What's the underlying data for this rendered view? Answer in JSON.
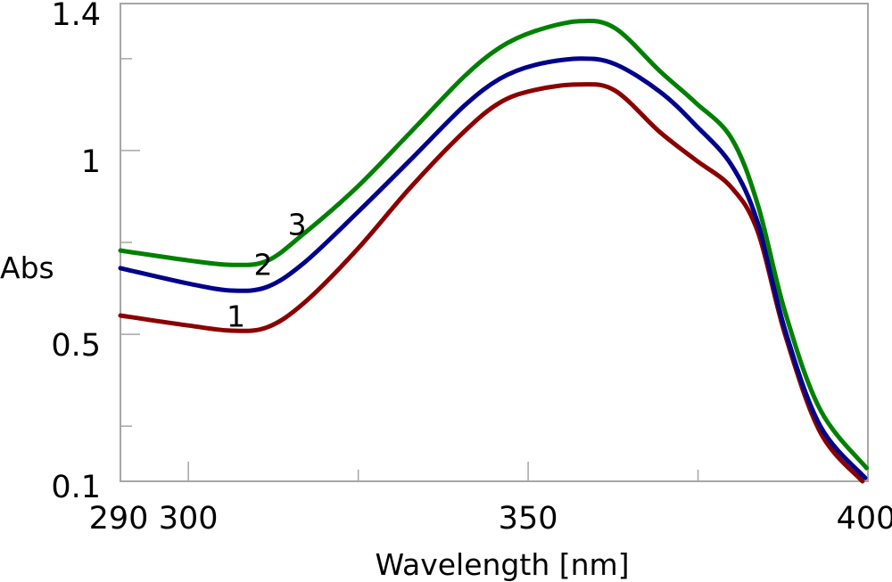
{
  "chart_data": {
    "type": "line",
    "title": "",
    "xlabel": "Wavelength [nm]",
    "ylabel": "Abs",
    "xlim": [
      290,
      400
    ],
    "ylim": [
      0.1,
      1.4
    ],
    "grid": false,
    "x_ticks": [
      {
        "value": 290,
        "label": "290",
        "major": true
      },
      {
        "value": 300,
        "label": "300",
        "major": true
      },
      {
        "value": 325,
        "label": "",
        "major": false
      },
      {
        "value": 350,
        "label": "350",
        "major": true
      },
      {
        "value": 375,
        "label": "",
        "major": false
      },
      {
        "value": 400,
        "label": "400",
        "major": true
      }
    ],
    "y_ticks": [
      {
        "value": 0.1,
        "label": "0.1",
        "major": true
      },
      {
        "value": 0.25,
        "label": "",
        "major": false
      },
      {
        "value": 0.5,
        "label": "0.5",
        "major": true
      },
      {
        "value": 0.75,
        "label": "",
        "major": false
      },
      {
        "value": 1.0,
        "label": "1",
        "major": true
      },
      {
        "value": 1.25,
        "label": "",
        "major": false
      },
      {
        "value": 1.4,
        "label": "1.4",
        "major": true
      }
    ],
    "series": [
      {
        "name": "1",
        "color": "#8b0000",
        "label_at": [
          307,
          0.55
        ],
        "x": [
          290,
          300,
          306.4,
          311.6,
          317,
          324.8,
          332.7,
          340.5,
          345.8,
          351,
          357.6,
          362.8,
          369.4,
          374.6,
          379.9,
          383.8,
          387.8,
          393,
          399.2
        ],
        "y": [
          0.551,
          0.524,
          0.51,
          0.519,
          0.585,
          0.73,
          0.9,
          1.05,
          1.13,
          1.165,
          1.18,
          1.163,
          1.05,
          0.975,
          0.9,
          0.779,
          0.5,
          0.233,
          0.1
        ]
      },
      {
        "name": "2",
        "color": "#00008b",
        "label_at": [
          311,
          0.69
        ],
        "x": [
          290,
          300,
          306.4,
          311.6,
          317,
          324.8,
          332.7,
          340.5,
          345.8,
          351,
          357.6,
          362.8,
          369.4,
          374.6,
          379.9,
          383.8,
          387.8,
          393,
          399.6
        ],
        "y": [
          0.68,
          0.638,
          0.619,
          0.629,
          0.694,
          0.83,
          0.975,
          1.12,
          1.195,
          1.233,
          1.25,
          1.235,
          1.16,
          1.07,
          0.961,
          0.803,
          0.512,
          0.25,
          0.109
        ]
      },
      {
        "name": "3",
        "color": "#008000",
        "label_at": [
          316,
          0.8
        ],
        "x": [
          290,
          300,
          306.4,
          311.6,
          317,
          324.8,
          332.7,
          340.5,
          345.8,
          351,
          357.6,
          362.8,
          369.4,
          374.6,
          379.9,
          383.8,
          387.8,
          393,
          399.8
        ],
        "y": [
          0.728,
          0.701,
          0.689,
          0.7,
          0.774,
          0.9,
          1.05,
          1.2,
          1.28,
          1.325,
          1.352,
          1.333,
          1.216,
          1.131,
          1.034,
          0.852,
          0.561,
          0.294,
          0.136
        ]
      }
    ]
  }
}
